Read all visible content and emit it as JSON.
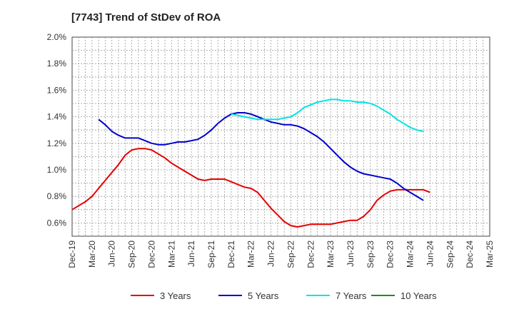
{
  "chart_data": {
    "type": "line",
    "title": "[7743]  Trend of StDev of ROA",
    "xlabel": "",
    "ylabel": "",
    "x_ticks": [
      "Dec-19",
      "Mar-20",
      "Jun-20",
      "Sep-20",
      "Dec-20",
      "Mar-21",
      "Jun-21",
      "Sep-21",
      "Dec-21",
      "Mar-22",
      "Jun-22",
      "Sep-22",
      "Dec-22",
      "Mar-23",
      "Jun-23",
      "Sep-23",
      "Dec-23",
      "Mar-24",
      "Jun-24",
      "Sep-24",
      "Dec-24",
      "Mar-25"
    ],
    "y_ticks": [
      "0.6%",
      "0.8%",
      "1.0%",
      "1.2%",
      "1.4%",
      "1.6%",
      "1.8%",
      "2.0%"
    ],
    "ylim": [
      0.5,
      2.0
    ],
    "grid": true,
    "legend_position": "bottom",
    "series": [
      {
        "name": "3 Years",
        "color": "#e60000",
        "values": [
          [
            0,
            0.7
          ],
          [
            1,
            0.73
          ],
          [
            2,
            0.76
          ],
          [
            3,
            0.8
          ],
          [
            4,
            0.86
          ],
          [
            5,
            0.92
          ],
          [
            6,
            0.98
          ],
          [
            7,
            1.04
          ],
          [
            8,
            1.11
          ],
          [
            9,
            1.15
          ],
          [
            10,
            1.16
          ],
          [
            11,
            1.16
          ],
          [
            12,
            1.15
          ],
          [
            13,
            1.12
          ],
          [
            14,
            1.09
          ],
          [
            15,
            1.05
          ],
          [
            16,
            1.02
          ],
          [
            17,
            0.99
          ],
          [
            18,
            0.96
          ],
          [
            19,
            0.93
          ],
          [
            20,
            0.92
          ],
          [
            21,
            0.93
          ],
          [
            22,
            0.93
          ],
          [
            23,
            0.93
          ],
          [
            24,
            0.91
          ],
          [
            25,
            0.89
          ],
          [
            26,
            0.87
          ],
          [
            27,
            0.86
          ],
          [
            28,
            0.83
          ],
          [
            29,
            0.77
          ],
          [
            30,
            0.71
          ],
          [
            31,
            0.66
          ],
          [
            32,
            0.61
          ],
          [
            33,
            0.58
          ],
          [
            34,
            0.57
          ],
          [
            35,
            0.58
          ],
          [
            36,
            0.59
          ],
          [
            37,
            0.59
          ],
          [
            38,
            0.59
          ],
          [
            39,
            0.59
          ],
          [
            40,
            0.6
          ],
          [
            41,
            0.61
          ],
          [
            42,
            0.62
          ],
          [
            43,
            0.62
          ],
          [
            44,
            0.65
          ],
          [
            45,
            0.7
          ],
          [
            46,
            0.77
          ],
          [
            47,
            0.81
          ],
          [
            48,
            0.84
          ],
          [
            49,
            0.85
          ],
          [
            50,
            0.85
          ],
          [
            51,
            0.85
          ],
          [
            52,
            0.85
          ],
          [
            53,
            0.85
          ],
          [
            54,
            0.83
          ]
        ]
      },
      {
        "name": "5 Years",
        "color": "#0000cc",
        "values": [
          [
            4,
            1.38
          ],
          [
            5,
            1.34
          ],
          [
            6,
            1.29
          ],
          [
            7,
            1.26
          ],
          [
            8,
            1.24
          ],
          [
            9,
            1.24
          ],
          [
            10,
            1.24
          ],
          [
            11,
            1.22
          ],
          [
            12,
            1.2
          ],
          [
            13,
            1.19
          ],
          [
            14,
            1.19
          ],
          [
            15,
            1.2
          ],
          [
            16,
            1.21
          ],
          [
            17,
            1.21
          ],
          [
            18,
            1.22
          ],
          [
            19,
            1.23
          ],
          [
            20,
            1.26
          ],
          [
            21,
            1.3
          ],
          [
            22,
            1.35
          ],
          [
            23,
            1.39
          ],
          [
            24,
            1.42
          ],
          [
            25,
            1.43
          ],
          [
            26,
            1.43
          ],
          [
            27,
            1.42
          ],
          [
            28,
            1.4
          ],
          [
            29,
            1.38
          ],
          [
            30,
            1.36
          ],
          [
            31,
            1.35
          ],
          [
            32,
            1.34
          ],
          [
            33,
            1.34
          ],
          [
            34,
            1.33
          ],
          [
            35,
            1.31
          ],
          [
            36,
            1.28
          ],
          [
            37,
            1.25
          ],
          [
            38,
            1.21
          ],
          [
            39,
            1.16
          ],
          [
            40,
            1.11
          ],
          [
            41,
            1.06
          ],
          [
            42,
            1.02
          ],
          [
            43,
            0.99
          ],
          [
            44,
            0.97
          ],
          [
            45,
            0.96
          ],
          [
            46,
            0.95
          ],
          [
            47,
            0.94
          ],
          [
            48,
            0.93
          ],
          [
            49,
            0.9
          ],
          [
            50,
            0.86
          ],
          [
            51,
            0.83
          ],
          [
            52,
            0.8
          ],
          [
            53,
            0.77
          ]
        ]
      },
      {
        "name": "7 Years",
        "color": "#00e5e5",
        "values": [
          [
            24,
            1.42
          ],
          [
            25,
            1.41
          ],
          [
            26,
            1.4
          ],
          [
            27,
            1.39
          ],
          [
            28,
            1.38
          ],
          [
            29,
            1.38
          ],
          [
            30,
            1.38
          ],
          [
            31,
            1.38
          ],
          [
            32,
            1.39
          ],
          [
            33,
            1.4
          ],
          [
            34,
            1.43
          ],
          [
            35,
            1.47
          ],
          [
            36,
            1.49
          ],
          [
            37,
            1.51
          ],
          [
            38,
            1.52
          ],
          [
            39,
            1.53
          ],
          [
            40,
            1.53
          ],
          [
            41,
            1.52
          ],
          [
            42,
            1.52
          ],
          [
            43,
            1.51
          ],
          [
            44,
            1.51
          ],
          [
            45,
            1.5
          ],
          [
            46,
            1.48
          ],
          [
            47,
            1.45
          ],
          [
            48,
            1.42
          ],
          [
            49,
            1.38
          ],
          [
            50,
            1.35
          ],
          [
            51,
            1.32
          ],
          [
            52,
            1.3
          ],
          [
            53,
            1.29
          ]
        ]
      },
      {
        "name": "10 Years",
        "color": "#228b22",
        "values": []
      }
    ]
  }
}
